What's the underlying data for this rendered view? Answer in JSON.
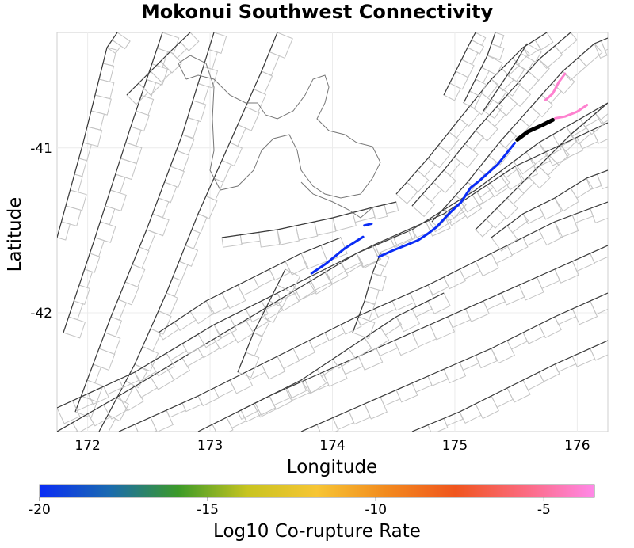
{
  "chart_data": {
    "type": "map",
    "title": "Mokonui Southwest Connectivity",
    "xlabel": "Longitude",
    "ylabel": "Latitude",
    "xlim": [
      171.75,
      176.25
    ],
    "ylim": [
      -42.72,
      -40.3
    ],
    "x_ticks": [
      172,
      173,
      174,
      175,
      176
    ],
    "y_ticks": [
      -41,
      -42
    ],
    "grid": true,
    "colorbar": {
      "label": "Log10 Co-rupture Rate",
      "range": [
        -20,
        -3.5
      ],
      "ticks": [
        -20,
        -15,
        -10,
        -5
      ],
      "colors": [
        "#0a2cf5",
        "#1a6ab0",
        "#3c9a28",
        "#c8c420",
        "#f7c534",
        "#f28a1e",
        "#f0551e",
        "#fb6a80",
        "#ff88e8"
      ]
    },
    "colored_ruptures": [
      {
        "name": "Mokonui Southwest",
        "highlight": true,
        "color": "#000000",
        "path": [
          [
            175.51,
            -40.95
          ],
          [
            175.6,
            -40.9
          ],
          [
            175.72,
            -40.86
          ],
          [
            175.8,
            -40.83
          ]
        ]
      },
      {
        "name": "rupture-blue-1",
        "log10_rate": -20,
        "path": [
          [
            175.49,
            -40.97
          ],
          [
            175.35,
            -41.1
          ],
          [
            175.2,
            -41.2
          ],
          [
            175.13,
            -41.24
          ],
          [
            175.05,
            -41.33
          ],
          [
            174.95,
            -41.4
          ],
          [
            174.85,
            -41.48
          ],
          [
            174.78,
            -41.52
          ],
          [
            174.7,
            -41.56
          ],
          [
            174.6,
            -41.59
          ],
          [
            174.5,
            -41.62
          ],
          [
            174.38,
            -41.66
          ]
        ]
      },
      {
        "name": "rupture-blue-2",
        "log10_rate": -20,
        "path": [
          [
            173.83,
            -41.76
          ],
          [
            173.95,
            -41.7
          ],
          [
            174.1,
            -41.61
          ],
          [
            174.25,
            -41.54
          ]
        ]
      },
      {
        "name": "rupture-blue-3",
        "log10_rate": -20,
        "path": [
          [
            174.26,
            -41.47
          ],
          [
            174.32,
            -41.46
          ]
        ]
      },
      {
        "name": "rupture-pink-1",
        "log10_rate": -4,
        "path": [
          [
            175.82,
            -40.82
          ],
          [
            175.9,
            -40.81
          ],
          [
            176.0,
            -40.78
          ],
          [
            176.08,
            -40.74
          ]
        ]
      },
      {
        "name": "rupture-pink-2",
        "log10_rate": -4,
        "path": [
          [
            175.74,
            -40.71
          ],
          [
            175.8,
            -40.67
          ],
          [
            175.85,
            -40.6
          ],
          [
            175.9,
            -40.55
          ]
        ]
      }
    ]
  }
}
